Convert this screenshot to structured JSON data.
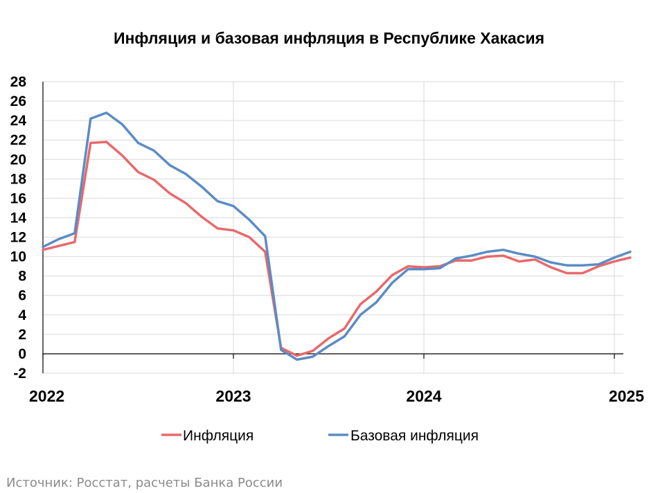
{
  "chart_data": {
    "type": "line",
    "title": "Инфляция и базовая инфляция в Республике Хакасия",
    "source": "Источник: Росстат, расчеты Банка России",
    "xlabel": "",
    "ylabel": "",
    "ylim": [
      -2,
      28
    ],
    "yticks": [
      "28",
      "26",
      "24",
      "22",
      "20",
      "18",
      "16",
      "14",
      "12",
      "10",
      "8",
      "6",
      "4",
      "2",
      "0",
      "-2"
    ],
    "xticks": [
      "2022",
      "2023",
      "2024",
      "2025"
    ],
    "x_start_year": 2022,
    "grid": true,
    "legend_position": "bottom",
    "colors": {
      "inflation": "#e8696b",
      "core": "#5b8cc4"
    },
    "series": [
      {
        "name": "Инфляция",
        "color": "#e8696b",
        "values": [
          10.7,
          11.1,
          11.5,
          21.7,
          21.8,
          20.4,
          18.7,
          17.9,
          16.5,
          15.5,
          14.1,
          12.9,
          12.7,
          12.0,
          10.5,
          0.6,
          -0.2,
          0.3,
          1.6,
          2.6,
          5.1,
          6.4,
          8.1,
          9.0,
          8.9,
          9.0,
          9.6,
          9.6,
          10.0,
          10.1,
          9.5,
          9.7,
          8.9,
          8.3,
          8.3,
          9.0,
          9.5,
          9.9
        ]
      },
      {
        "name": "Базовая инфляция",
        "color": "#5b8cc4",
        "values": [
          11.0,
          11.8,
          12.4,
          24.2,
          24.8,
          23.6,
          21.7,
          20.9,
          19.4,
          18.5,
          17.2,
          15.7,
          15.2,
          13.8,
          12.1,
          0.4,
          -0.6,
          -0.3,
          0.8,
          1.8,
          4.0,
          5.3,
          7.3,
          8.7,
          8.7,
          8.8,
          9.8,
          10.1,
          10.5,
          10.7,
          10.3,
          10.0,
          9.4,
          9.1,
          9.1,
          9.2,
          9.9,
          10.5
        ]
      }
    ]
  }
}
